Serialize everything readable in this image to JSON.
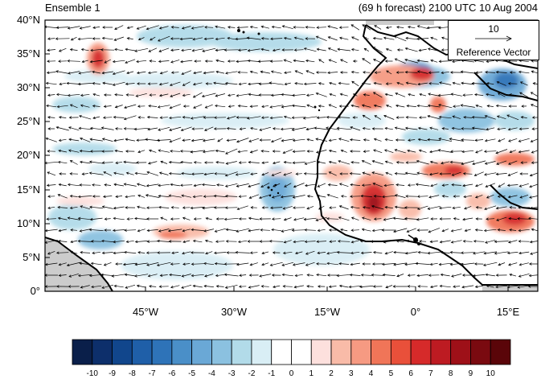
{
  "titles": {
    "left": "Ensemble 1",
    "right": "(69 h forecast) 2100 UTC 10 Aug 2004"
  },
  "map": {
    "lat_labels": [
      "40°N",
      "35°N",
      "30°N",
      "25°N",
      "20°N",
      "15°N",
      "10°N",
      "5°N",
      "0°"
    ],
    "lon_labels": [
      "45°W",
      "30°W",
      "15°W",
      "0°",
      "15°E"
    ],
    "lat_range": [
      0,
      40
    ],
    "lon_range": [
      -62,
      22
    ],
    "land_color": "#cccccc",
    "coast_color": "#000000"
  },
  "reference_vector": {
    "value": "10",
    "label": "Reference Vector"
  },
  "colorbar": {
    "labels": [
      "-10",
      "-9",
      "-8",
      "-7",
      "-6",
      "-5",
      "-4",
      "-3",
      "-2",
      "-1",
      "0",
      "1",
      "2",
      "3",
      "4",
      "5",
      "6",
      "7",
      "8",
      "9",
      "10"
    ],
    "colors": [
      "#0a1f4a",
      "#0d2f6b",
      "#11468c",
      "#1f5fa8",
      "#2e73b8",
      "#4a8fc8",
      "#6aa8d6",
      "#8bc1e0",
      "#b2dbe9",
      "#d9eef5",
      "#ffffff",
      "#ffffff",
      "#fde0dd",
      "#f9bba8",
      "#f69a82",
      "#f07558",
      "#e9503a",
      "#d62a2a",
      "#bd1b22",
      "#9e1018",
      "#7a0a10",
      "#5a0509"
    ]
  }
}
